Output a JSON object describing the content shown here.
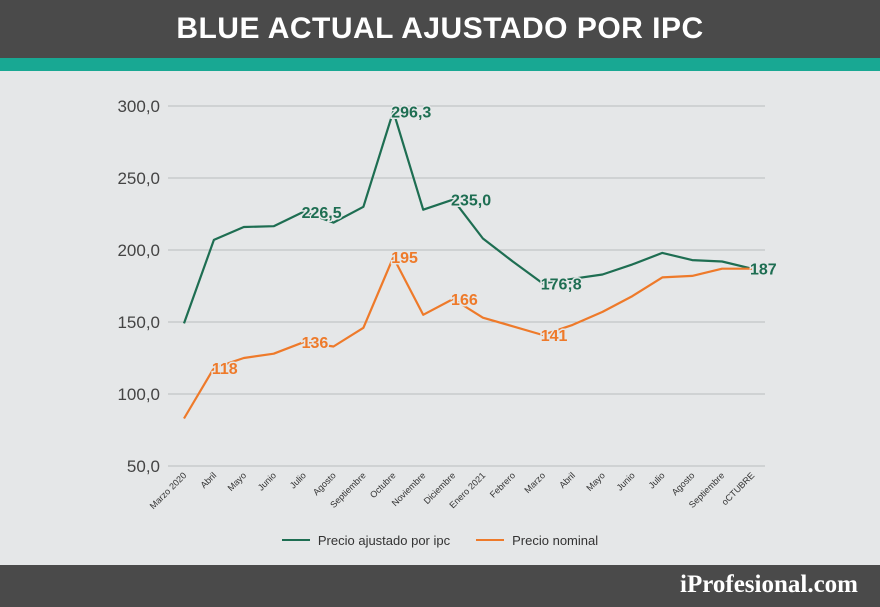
{
  "header": {
    "title": "BLUE ACTUAL AJUSTADO POR IPC"
  },
  "footer": {
    "brand": "iProfesional.com"
  },
  "chart_data": {
    "type": "line",
    "categories": [
      "Marzo 2020",
      "Abril",
      "Mayo",
      "Junio",
      "Julio",
      "Agosto",
      "Septiembre",
      "Octubre",
      "Noviembre",
      "Diciembre",
      "Enero 2021",
      "Febrero",
      "Marzo",
      "Abril",
      "Mayo",
      "Junio",
      "Julio",
      "Agosto",
      "Septiembre",
      "oCTUBRE"
    ],
    "y_ticks": [
      "300,0",
      "250,0",
      "200,0",
      "150,0",
      "100,0",
      "50,0"
    ],
    "ylim": [
      50,
      300
    ],
    "grid": true,
    "legend_position": "bottom",
    "series": [
      {
        "name": "Precio ajustado por ipc",
        "color": "#1e6e52",
        "values": [
          149,
          207,
          216,
          216.5,
          226.5,
          219,
          230,
          296.3,
          228,
          235,
          208,
          192,
          176.8,
          180,
          183,
          190,
          198,
          193,
          192,
          187
        ],
        "labels": [
          {
            "index": 4,
            "text": "226,5"
          },
          {
            "index": 7,
            "text": "296,3"
          },
          {
            "index": 9,
            "text": "235,0"
          },
          {
            "index": 12,
            "text": "176;8"
          },
          {
            "index": 19,
            "text": "187"
          }
        ]
      },
      {
        "name": "Precio nominal",
        "color": "#ee7a2a",
        "values": [
          83,
          118,
          125,
          128,
          136,
          133,
          146,
          195,
          155,
          166,
          153,
          147,
          141,
          148,
          157,
          168,
          181,
          182,
          187,
          187
        ],
        "labels": [
          {
            "index": 1,
            "text": "118"
          },
          {
            "index": 4,
            "text": "136"
          },
          {
            "index": 7,
            "text": "195"
          },
          {
            "index": 9,
            "text": "166"
          },
          {
            "index": 12,
            "text": "141"
          }
        ]
      }
    ]
  }
}
